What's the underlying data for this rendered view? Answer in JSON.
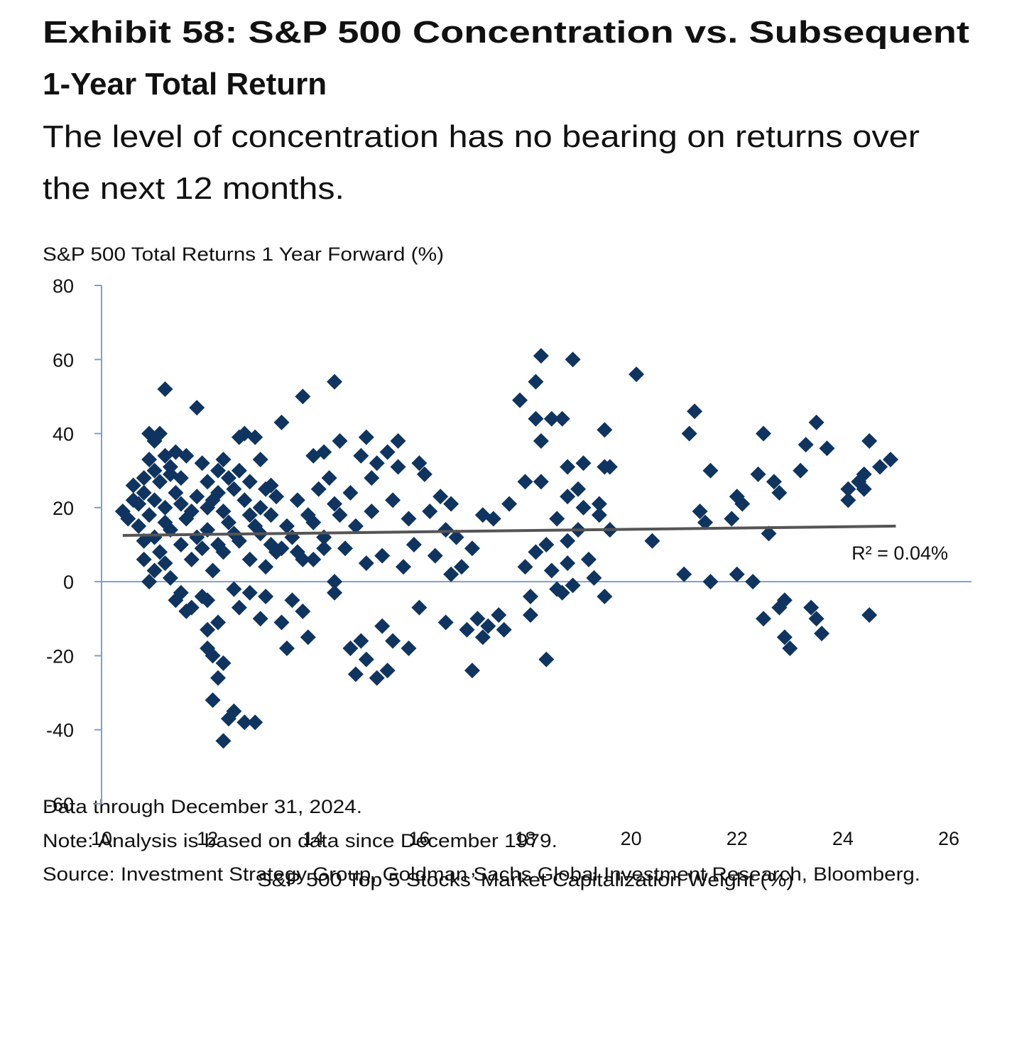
{
  "chart_data": {
    "type": "scatter",
    "title": [
      "Exhibit 58: S&P 500 Concentration vs. Subsequent",
      "1-Year Total Return"
    ],
    "subtitle": [
      "The level of concentration has no bearing on returns over",
      "the next 12 months."
    ],
    "ylabel": "S&P 500 Total Returns 1 Year Forward (%)",
    "xlabel": "S&P 500 Top 5 Stocks’ Market Capitalization Weight (%)",
    "annotation": "R² = 0.04%",
    "notes": [
      "Data through December 31, 2024.",
      "Note: Analysis is based on data since December 1979.",
      "Source: Investment Strategy Group, Goldman Sachs Global Investment Research, Bloomberg."
    ],
    "xlim": [
      10,
      26
    ],
    "xticks": [
      10,
      12,
      14,
      16,
      18,
      20,
      22,
      24,
      26
    ],
    "ylim": [
      -60,
      80
    ],
    "yticks": [
      -60,
      -40,
      -20,
      0,
      20,
      40,
      60,
      80
    ],
    "color": "#0f3460",
    "x": [
      10.4,
      10.5,
      10.6,
      10.6,
      10.7,
      10.7,
      10.8,
      10.8,
      10.8,
      10.9,
      10.9,
      10.9,
      10.9,
      11.0,
      11.0,
      11.0,
      11.0,
      11.1,
      11.1,
      11.1,
      11.2,
      11.2,
      11.2,
      11.2,
      11.3,
      11.3,
      11.3,
      11.4,
      11.4,
      11.4,
      11.5,
      11.5,
      11.5,
      11.6,
      11.6,
      11.6,
      11.7,
      11.7,
      11.8,
      11.8,
      11.8,
      11.9,
      11.9,
      12.0,
      12.0,
      12.0,
      12.0,
      12.0,
      12.1,
      12.1,
      12.1,
      12.1,
      12.2,
      12.2,
      12.2,
      12.3,
      12.3,
      12.3,
      12.3,
      12.3,
      12.4,
      12.4,
      12.5,
      12.5,
      12.5,
      12.5,
      12.6,
      12.6,
      12.6,
      12.7,
      12.7,
      12.7,
      12.8,
      12.8,
      12.8,
      12.9,
      12.9,
      12.9,
      13.0,
      13.0,
      13.0,
      13.1,
      13.1,
      13.1,
      13.2,
      13.2,
      13.3,
      13.3,
      13.4,
      13.4,
      13.5,
      13.5,
      13.6,
      13.7,
      13.7,
      13.8,
      13.8,
      13.9,
      13.9,
      14.0,
      14.0,
      14.1,
      14.2,
      14.2,
      14.3,
      14.4,
      14.4,
      14.4,
      14.5,
      14.5,
      14.6,
      14.7,
      14.7,
      14.8,
      14.8,
      14.9,
      14.9,
      15.0,
      15.0,
      15.0,
      15.1,
      15.1,
      15.2,
      15.2,
      15.3,
      15.3,
      15.4,
      15.4,
      15.5,
      15.5,
      15.6,
      15.6,
      15.7,
      15.8,
      15.8,
      15.9,
      16.0,
      16.0,
      16.1,
      16.2,
      16.3,
      16.4,
      16.5,
      16.5,
      16.6,
      16.6,
      16.7,
      16.8,
      16.9,
      17.0,
      17.0,
      17.1,
      17.2,
      17.2,
      17.3,
      17.4,
      17.5,
      17.6,
      17.7,
      17.9,
      18.0,
      18.0,
      18.1,
      18.1,
      18.2,
      18.2,
      18.2,
      18.3,
      18.3,
      18.3,
      18.4,
      18.4,
      18.5,
      18.5,
      18.6,
      18.6,
      18.7,
      18.7,
      18.8,
      18.8,
      18.8,
      18.8,
      18.9,
      18.9,
      19.0,
      19.0,
      19.1,
      19.1,
      19.2,
      19.3,
      19.4,
      19.4,
      19.5,
      19.5,
      19.5,
      19.6,
      19.6,
      20.1,
      20.4,
      21.0,
      21.1,
      21.2,
      21.3,
      21.4,
      21.5,
      21.5,
      21.9,
      22.0,
      22.0,
      22.1,
      22.3,
      22.4,
      22.5,
      22.5,
      22.6,
      22.7,
      22.8,
      22.8,
      22.9,
      22.9,
      23.0,
      23.2,
      23.3,
      23.4,
      23.5,
      23.5,
      23.6,
      23.7,
      24.1,
      24.1,
      24.3,
      24.4,
      24.4,
      24.5,
      24.5,
      24.7,
      24.9,
      11.0,
      11.2,
      11.5,
      11.7,
      11.9,
      12.0,
      12.2,
      12.4,
      12.6,
      12.8,
      13.0,
      13.2,
      13.4,
      13.6,
      13.8,
      14.0,
      14.2,
      14.4,
      12.2,
      11.3,
      10.8
    ],
    "values": [
      19,
      17,
      22,
      26,
      15,
      21,
      28,
      24,
      6,
      40,
      33,
      18,
      0,
      38,
      30,
      12,
      3,
      40,
      27,
      8,
      52,
      34,
      20,
      5,
      29,
      14,
      1,
      35,
      24,
      -5,
      21,
      10,
      -3,
      34,
      17,
      -8,
      6,
      -7,
      47,
      23,
      12,
      32,
      -4,
      27,
      14,
      -5,
      -13,
      -18,
      22,
      3,
      -20,
      -32,
      30,
      -11,
      -26,
      33,
      19,
      8,
      -22,
      -43,
      28,
      -37,
      25,
      13,
      -2,
      -35,
      39,
      30,
      -7,
      40,
      22,
      -38,
      27,
      6,
      -3,
      39,
      15,
      -38,
      33,
      20,
      -10,
      25,
      4,
      -4,
      18,
      10,
      23,
      8,
      -11,
      43,
      -18,
      15,
      -5,
      22,
      8,
      50,
      -8,
      -15,
      18,
      34,
      6,
      25,
      12,
      35,
      28,
      54,
      0,
      -3,
      18,
      38,
      9,
      24,
      -18,
      15,
      -25,
      -16,
      34,
      39,
      5,
      -21,
      28,
      19,
      32,
      -26,
      -12,
      7,
      35,
      -24,
      22,
      -16,
      38,
      31,
      4,
      -18,
      17,
      10,
      32,
      -7,
      29,
      19,
      7,
      23,
      -11,
      14,
      21,
      2,
      12,
      4,
      -13,
      9,
      -24,
      -10,
      18,
      -15,
      -12,
      17,
      -9,
      -13,
      21,
      49,
      27,
      4,
      -4,
      -9,
      54,
      44,
      8,
      61,
      38,
      27,
      10,
      -21,
      44,
      3,
      -2,
      17,
      44,
      -3,
      31,
      23,
      11,
      5,
      60,
      -1,
      25,
      14,
      20,
      32,
      6,
      1,
      18,
      21,
      41,
      31,
      -4,
      14,
      31,
      56,
      11,
      2,
      40,
      46,
      19,
      16,
      30,
      0,
      17,
      23,
      2,
      21,
      0,
      29,
      40,
      -10,
      13,
      27,
      24,
      -7,
      -5,
      -15,
      -18,
      30,
      37,
      -7,
      43,
      -10,
      -14,
      36,
      25,
      22,
      27,
      29,
      25,
      38,
      -9,
      31,
      33,
      22,
      16,
      28,
      19,
      9,
      20,
      10,
      16,
      11,
      18,
      13,
      26,
      9,
      12,
      6,
      16,
      9,
      21,
      24,
      31,
      11
    ],
    "trendline": {
      "x": [
        10.4,
        25
      ],
      "values": [
        12.5,
        15
      ],
      "color": "#555555"
    }
  }
}
